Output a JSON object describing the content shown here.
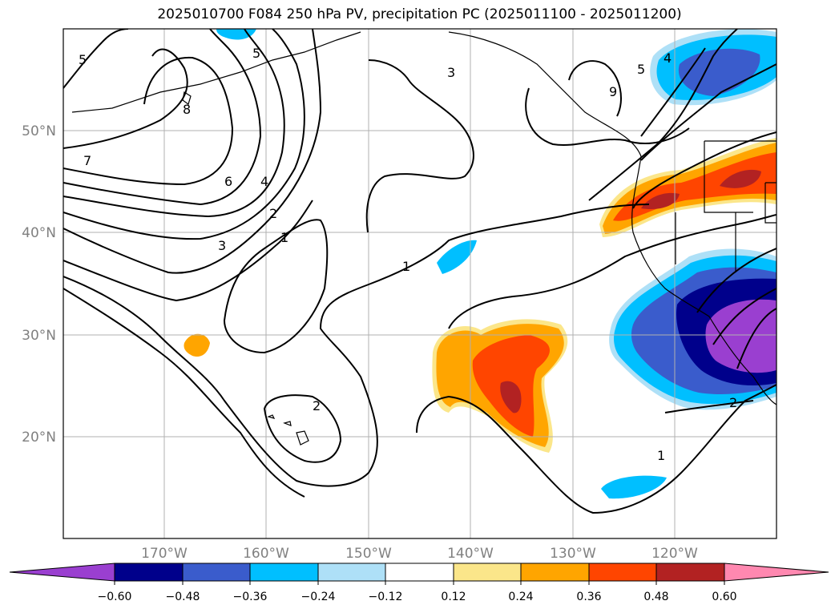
{
  "title": "2025010700 F084 250 hPa PV, precipitation PC (2025011100 - 2025011200)",
  "map": {
    "lat_labels": [
      "50°N",
      "40°N",
      "30°N",
      "20°N"
    ],
    "lon_labels": [
      "170°W",
      "160°W",
      "150°W",
      "140°W",
      "130°W",
      "120°W"
    ],
    "grid": true,
    "pv_contour_labels": [
      "5",
      "5",
      "3",
      "4",
      "9",
      "8",
      "7",
      "6",
      "4",
      "2",
      "3",
      "1",
      "1",
      "2",
      "2",
      "1",
      "5"
    ]
  },
  "colorbar": {
    "ticks": [
      "−0.60",
      "−0.48",
      "−0.36",
      "−0.24",
      "−0.12",
      "0.12",
      "0.24",
      "0.36",
      "0.48",
      "0.60"
    ],
    "colors": {
      "under": "#9a3fd0",
      "b1": "#00008b",
      "b2": "#3a5ccc",
      "b3": "#00bfff",
      "b4": "#aee0f7",
      "b5": "#ffffff",
      "b6": "#fbe68a",
      "b7": "#ffa500",
      "b8": "#ff4500",
      "b9": "#b22222",
      "over": "#ff88b0"
    }
  }
}
